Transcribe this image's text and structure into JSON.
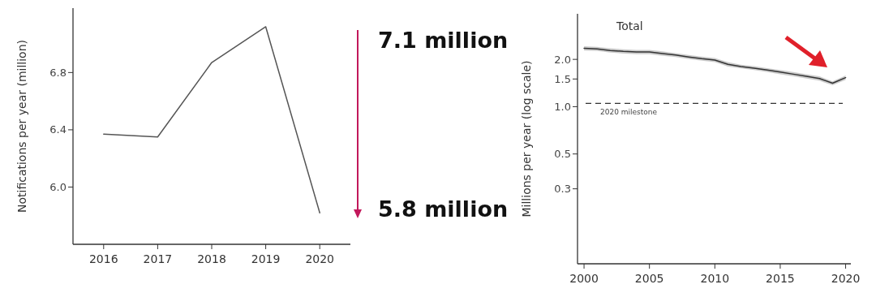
{
  "chart_data": [
    {
      "type": "line",
      "ylabel": "Notifications per year (million)",
      "categories": [
        "2016",
        "2017",
        "2018",
        "2019",
        "2020"
      ],
      "series": [
        {
          "color": "#555555",
          "values": [
            6.37,
            6.35,
            6.87,
            7.12,
            5.82
          ]
        }
      ],
      "ylim": [
        5.6,
        7.25
      ],
      "yticks": [
        {
          "value": 6,
          "label": "6.0"
        },
        6.4,
        6.8
      ],
      "grid": false,
      "marker": "none",
      "line_style": "solid",
      "annotations": [
        "7.1 million",
        "5.8 million"
      ]
    },
    {
      "type": "line",
      "ylabel": "Millions per year (log scale)",
      "log": "y",
      "x": [
        2000,
        2001,
        2002,
        2003,
        2004,
        2005,
        2006,
        2007,
        2008,
        2009,
        2010,
        2011,
        2012,
        2013,
        2014,
        2015,
        2016,
        2017,
        2018,
        2019,
        2020
      ],
      "series": [
        {
          "name": "Total",
          "color": "#333333",
          "values": [
            2.35,
            2.33,
            2.28,
            2.25,
            2.23,
            2.23,
            2.18,
            2.13,
            2.07,
            2.02,
            1.98,
            1.86,
            1.8,
            1.76,
            1.71,
            1.66,
            1.61,
            1.56,
            1.51,
            1.41,
            1.53
          ],
          "lower": [
            2.28,
            2.26,
            2.21,
            2.18,
            2.16,
            2.16,
            2.11,
            2.07,
            2.01,
            1.96,
            1.92,
            1.8,
            1.75,
            1.71,
            1.66,
            1.61,
            1.56,
            1.51,
            1.46,
            1.37,
            1.48
          ],
          "upper": [
            2.42,
            2.4,
            2.35,
            2.32,
            2.3,
            2.3,
            2.25,
            2.19,
            2.13,
            2.08,
            2.04,
            1.92,
            1.85,
            1.81,
            1.76,
            1.71,
            1.66,
            1.61,
            1.56,
            1.45,
            1.58
          ]
        }
      ],
      "xlim": [
        1999.5,
        2020.4
      ],
      "xticks": [
        2000,
        2005,
        2010,
        2015,
        2020
      ],
      "ylim": [
        0.1,
        3.9
      ],
      "yticks": [
        {
          "value": 0.3,
          "label": "0.3"
        },
        {
          "value": 0.5,
          "label": "0.5"
        },
        {
          "value": 1,
          "label": "1.0"
        },
        1.5,
        {
          "value": 2,
          "label": "2.0"
        }
      ],
      "ref_lines": [
        {
          "axis": "y",
          "value": 1.05,
          "label": "2020 milestone",
          "line_style": "dashed",
          "color": "#333333"
        }
      ],
      "grid": false,
      "marker": "none",
      "line_style": "solid"
    }
  ]
}
